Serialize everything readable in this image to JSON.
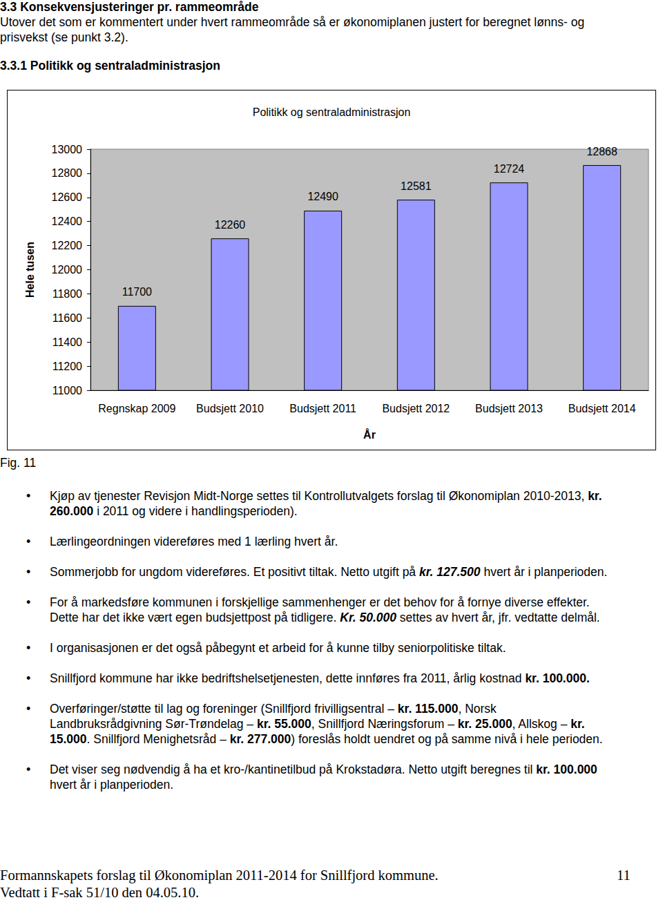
{
  "header": {
    "title": "3.3 Konsekvensjusteringer pr. rammeområde",
    "text": "Utover det som er kommentert under hvert rammeområde så er økonomiplanen justert for beregnet lønns- og prisvekst (se punkt 3.2).",
    "subtitle": "3.3.1 Politikk og sentraladministrasjon"
  },
  "chart_data": {
    "type": "bar",
    "title": "Politikk og sentraladministrasjon",
    "x_label": "År",
    "y_label": "Hele tusen",
    "categories": [
      "Regnskap 2009",
      "Budsjett 2010",
      "Budsjett 2011",
      "Budsjett 2012",
      "Budsjett 2013",
      "Budsjett 2014"
    ],
    "values": [
      11700,
      12260,
      12490,
      12581,
      12724,
      12868
    ],
    "color": "#9999ff",
    "ylim": [
      11000,
      13000
    ],
    "yticks": [
      11000,
      11200,
      11400,
      11600,
      11800,
      12000,
      12200,
      12400,
      12600,
      12800,
      13000
    ],
    "grid": false,
    "data_labels": true
  },
  "figure_label": "Fig. 11",
  "bullets": [
    [
      {
        "text": "Kjøp av tjenester Revisjon Midt-Norge settes til Kontrollutvalgets forslag til Økonomiplan 2010-2013, "
      },
      {
        "text": "kr. 260.000",
        "style": "bold"
      },
      {
        "text": " i 2011 og videre i handlingsperioden)."
      }
    ],
    [
      {
        "text": "Lærlingeordningen videreføres med 1 lærling hvert år."
      }
    ],
    [
      {
        "text": "Sommerjobb for ungdom videreføres. Et positivt tiltak. Netto utgift på "
      },
      {
        "text": "kr. 127.500",
        "style": "bold-italic"
      },
      {
        "text": " hvert år i planperioden."
      }
    ],
    [
      {
        "text": "For å markedsføre kommunen i forskjellige sammenhenger er det behov for å fornye diverse effekter. Dette har det ikke vært egen budsjettpost på tidligere. "
      },
      {
        "text": "Kr. 50.000",
        "style": "bold-italic"
      },
      {
        "text": " settes av hvert år, jfr. vedtatte delmål."
      }
    ],
    [
      {
        "text": "I organisasjonen er det også påbegynt et arbeid for å kunne tilby seniorpolitiske tiltak."
      }
    ],
    [
      {
        "text": "Snillfjord kommune har ikke bedriftshelsetjenesten, dette innføres fra 2011, årlig kostnad "
      },
      {
        "text": "kr. 100.000.",
        "style": "bold"
      }
    ],
    [
      {
        "text": "Overføringer/støtte til lag og foreninger (Snillfjord frivilligsentral – "
      },
      {
        "text": "kr. 115.000",
        "style": "bold"
      },
      {
        "text": ", Norsk Landbruksrådgivning Sør-Trøndelag – "
      },
      {
        "text": "kr. 55.000",
        "style": "bold"
      },
      {
        "text": ", Snillfjord Næringsforum – "
      },
      {
        "text": "kr. 25.000",
        "style": "bold"
      },
      {
        "text": ", Allskog – "
      },
      {
        "text": "kr. 15.000",
        "style": "bold"
      },
      {
        "text": ". Snillfjord Menighetsråd – "
      },
      {
        "text": "kr. 277.000",
        "style": "bold"
      },
      {
        "text": ") foreslås holdt uendret og på samme nivå i hele perioden."
      }
    ],
    [
      {
        "text": "Det viser seg nødvendig å ha et kro-/kantinetilbud på Krokstadøra. Netto utgift beregnes til "
      },
      {
        "text": "kr. 100.000",
        "style": "bold"
      },
      {
        "text": " hvert år i planperioden."
      }
    ]
  ],
  "footer": {
    "text": "Formannskapets forslag til Økonomiplan 2011-2014 for Snillfjord kommune.",
    "page": "11",
    "note": "Vedtatt i F-sak 51/10 den 04.05.10."
  }
}
